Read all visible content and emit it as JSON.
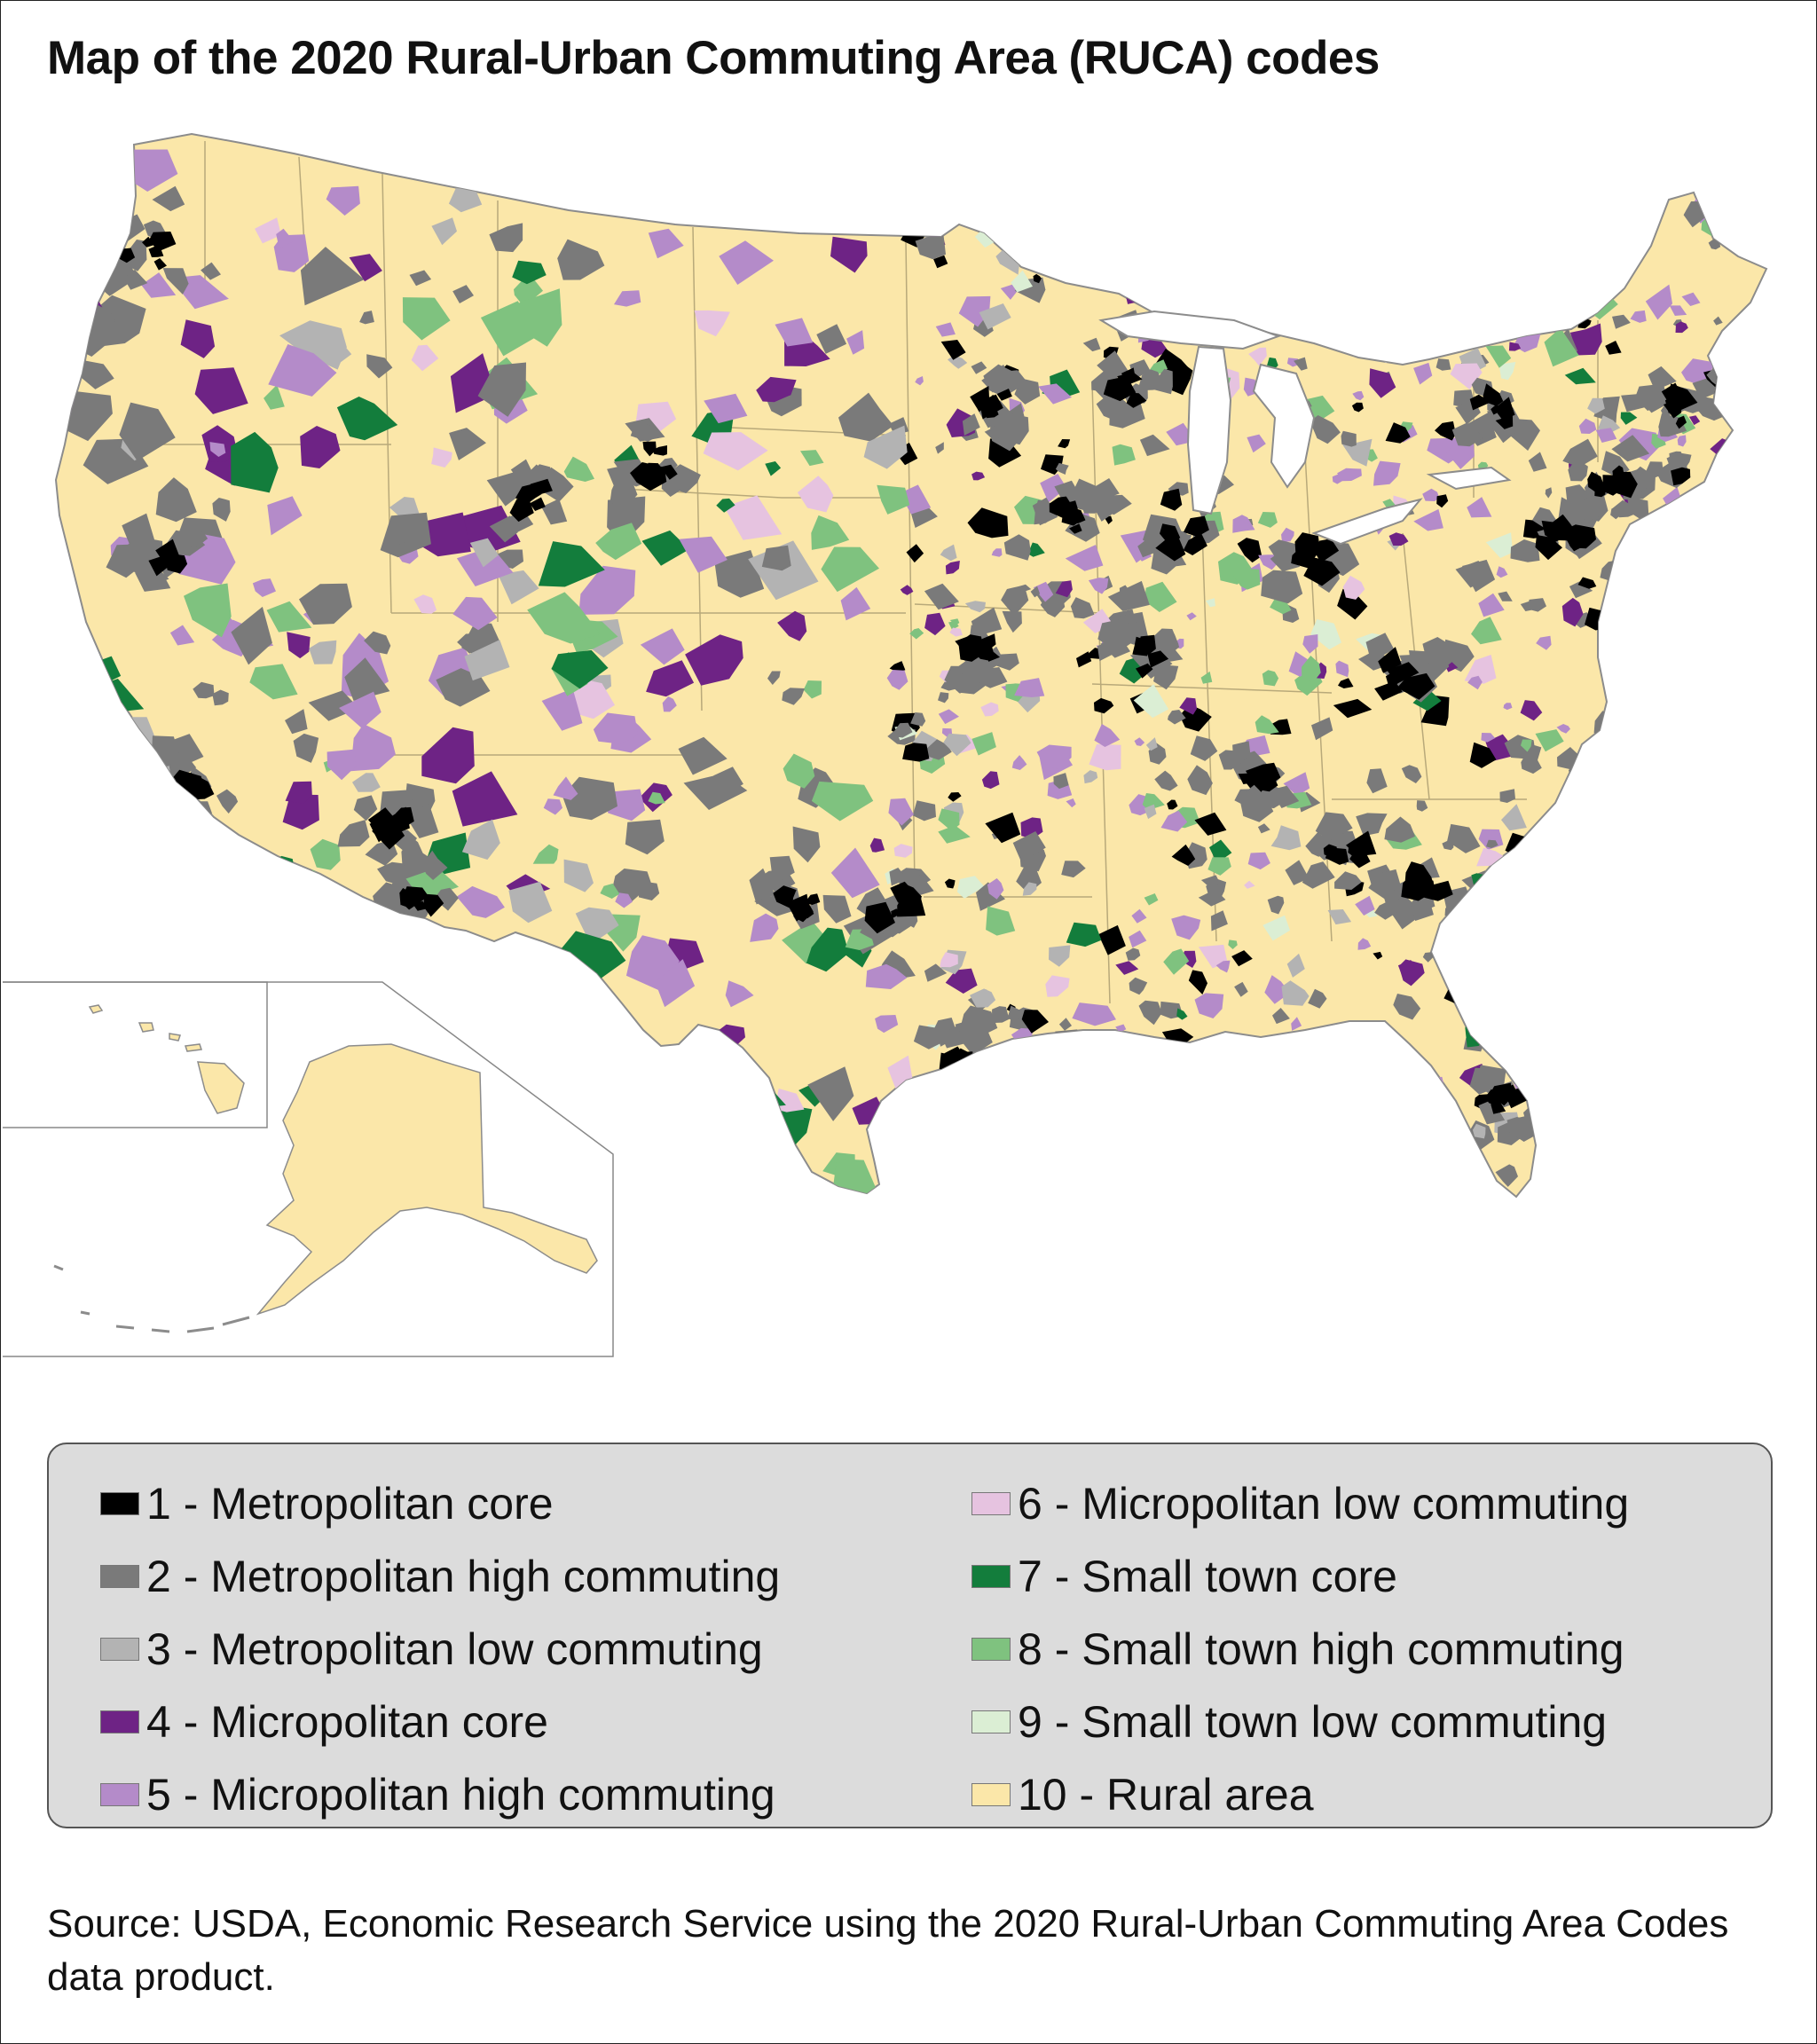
{
  "title": "Map of the 2020 Rural-Urban Commuting Area (RUCA) codes",
  "map": {
    "subject": "Contiguous United States with Alaska and Hawaii insets",
    "base_color": "#fbe7a9",
    "border_color": "#8c8c8c",
    "insets": [
      "Hawaii",
      "Alaska"
    ]
  },
  "legend": {
    "left": [
      {
        "code": "1",
        "label": "1 - Metropolitan core",
        "color": "#000000"
      },
      {
        "code": "2",
        "label": "2 - Metropolitan high commuting",
        "color": "#7a7a7a"
      },
      {
        "code": "3",
        "label": "3 - Metropolitan low commuting",
        "color": "#b3b3b3"
      },
      {
        "code": "4",
        "label": "4 - Micropolitan core",
        "color": "#6e2385"
      },
      {
        "code": "5",
        "label": "5 - Micropolitan high commuting",
        "color": "#b48bc9"
      }
    ],
    "right": [
      {
        "code": "6",
        "label": "6 - Micropolitan low commuting",
        "color": "#e6c3e0"
      },
      {
        "code": "7",
        "label": "7 - Small town core",
        "color": "#137d3c"
      },
      {
        "code": "8",
        "label": "8 - Small town high commuting",
        "color": "#7fc27f"
      },
      {
        "code": "9",
        "label": "9 - Small town low commuting",
        "color": "#dbeed4"
      },
      {
        "code": "10",
        "label": "10 - Rural area",
        "color": "#fbe7a9"
      }
    ]
  },
  "source": "Source: USDA, Economic Research Service using the 2020 Rural-Urban Commuting Area Codes data product."
}
